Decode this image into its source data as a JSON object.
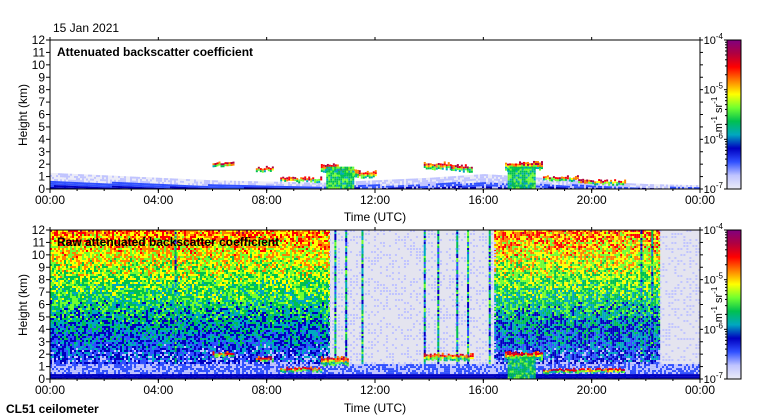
{
  "figure": {
    "date": "15 Jan 2021",
    "instrument": "CL51 ceilometer"
  },
  "chart_data": [
    {
      "type": "heatmap",
      "title": "Attenuated backscatter coefficient",
      "xlabel": "Time (UTC)",
      "ylabel": "Height (km)",
      "x_ticks": [
        "00:00",
        "04:00",
        "08:00",
        "12:00",
        "16:00",
        "20:00",
        "00:00"
      ],
      "xlim_hours": [
        0,
        24
      ],
      "y_ticks": [
        0,
        1,
        2,
        3,
        4,
        5,
        6,
        7,
        8,
        9,
        10,
        11,
        12
      ],
      "ylim": [
        0,
        12
      ],
      "colorbar": {
        "scale": "log",
        "range": [
          1e-07,
          0.0001
        ],
        "ticks": [
          {
            "base": "10",
            "exp": "-7",
            "value": 1e-07
          },
          {
            "base": "10",
            "exp": "-6",
            "value": 1e-06
          },
          {
            "base": "10",
            "exp": "-5",
            "value": 1e-05
          },
          {
            "base": "10",
            "exp": "-4",
            "value": 0.0001
          }
        ],
        "unit": {
          "m": "m",
          "m_exp": "-1",
          "sr": "sr",
          "sr_exp": "-1"
        },
        "colormap": [
          "#ececf7",
          "#c0c4ff",
          "#3050ff",
          "#0000c0",
          "#00a8c0",
          "#00c050",
          "#70ff30",
          "#ffff00",
          "#ff8000",
          "#ff0000",
          "#b00040",
          "#800080"
        ]
      },
      "features": {
        "boundary_layer": [
          {
            "h": 0.0,
            "top": 1.3
          },
          {
            "h": 2.0,
            "top": 1.1
          },
          {
            "h": 4.0,
            "top": 0.9
          },
          {
            "h": 6.0,
            "top": 0.7
          },
          {
            "h": 8.0,
            "top": 0.6
          },
          {
            "h": 10.0,
            "top": 0.5
          },
          {
            "h": 12.0,
            "top": 0.7
          },
          {
            "h": 14.0,
            "top": 0.9
          },
          {
            "h": 16.0,
            "top": 1.2
          },
          {
            "h": 17.5,
            "top": 1.0
          },
          {
            "h": 20.0,
            "top": 0.6
          },
          {
            "h": 22.0,
            "top": 0.4
          },
          {
            "h": 24.0,
            "top": 0.3
          }
        ],
        "cloud_segments": [
          {
            "start": 6.0,
            "end": 6.8,
            "height": 2.0,
            "thickness": 0.3
          },
          {
            "start": 7.6,
            "end": 8.2,
            "height": 1.6,
            "thickness": 0.3
          },
          {
            "start": 8.5,
            "end": 10.0,
            "height": 0.8,
            "thickness": 0.2
          },
          {
            "start": 10.0,
            "end": 10.6,
            "height": 1.7,
            "thickness": 0.6
          },
          {
            "start": 10.6,
            "end": 11.4,
            "height": 1.4,
            "thickness": 0.5
          },
          {
            "start": 11.4,
            "end": 12.0,
            "height": 1.2,
            "thickness": 0.4
          },
          {
            "start": 13.8,
            "end": 14.8,
            "height": 1.9,
            "thickness": 0.4
          },
          {
            "start": 14.8,
            "end": 15.6,
            "height": 1.7,
            "thickness": 0.4
          },
          {
            "start": 16.8,
            "end": 18.2,
            "height": 1.9,
            "thickness": 0.5
          },
          {
            "start": 18.2,
            "end": 19.5,
            "height": 0.9,
            "thickness": 0.2
          },
          {
            "start": 19.5,
            "end": 21.2,
            "height": 0.6,
            "thickness": 0.2
          }
        ],
        "precipitation_shafts": [
          {
            "start": 10.2,
            "end": 11.2,
            "top": 1.8
          },
          {
            "start": 16.9,
            "end": 17.9,
            "top": 1.8
          }
        ]
      }
    },
    {
      "type": "heatmap",
      "title": "Raw attenuated backscatter coefficient",
      "xlabel": "Time (UTC)",
      "ylabel": "Height (km)",
      "x_ticks": [
        "00:00",
        "04:00",
        "08:00",
        "12:00",
        "16:00",
        "20:00",
        "00:00"
      ],
      "xlim_hours": [
        0,
        24
      ],
      "y_ticks": [
        0,
        1,
        2,
        3,
        4,
        5,
        6,
        7,
        8,
        9,
        10,
        11,
        12
      ],
      "ylim": [
        0,
        12
      ],
      "colorbar": {
        "scale": "log",
        "range": [
          1e-07,
          0.0001
        ],
        "ticks": [
          {
            "base": "10",
            "exp": "-7",
            "value": 1e-07
          },
          {
            "base": "10",
            "exp": "-6",
            "value": 1e-06
          },
          {
            "base": "10",
            "exp": "-5",
            "value": 1e-05
          },
          {
            "base": "10",
            "exp": "-4",
            "value": 0.0001
          }
        ],
        "unit": {
          "m": "m",
          "m_exp": "-1",
          "sr": "sr",
          "sr_exp": "-1"
        },
        "colormap": [
          "#ececf7",
          "#c0c4ff",
          "#3050ff",
          "#0000c0",
          "#00a8c0",
          "#00c050",
          "#70ff30",
          "#ffff00",
          "#ff8000",
          "#ff0000",
          "#b00040",
          "#800080"
        ]
      },
      "features": {
        "noisy_background_periods": [
          {
            "start": 0.0,
            "end": 10.3
          },
          {
            "start": 16.4,
            "end": 22.5
          }
        ],
        "clean_periods": [
          {
            "start": 10.3,
            "end": 16.4
          },
          {
            "start": 22.5,
            "end": 24.0
          }
        ],
        "vertical_streaks": [
          4.6,
          10.5,
          10.9,
          11.5,
          13.8,
          14.3,
          15.0,
          15.4,
          16.2,
          21.8,
          22.2
        ],
        "boundary_layer_top_km": 1.2,
        "cloud_segments": [
          {
            "start": 6.0,
            "end": 6.8,
            "height": 2.0,
            "thickness": 0.3
          },
          {
            "start": 7.6,
            "end": 8.2,
            "height": 1.6,
            "thickness": 0.3
          },
          {
            "start": 8.5,
            "end": 10.0,
            "height": 0.8,
            "thickness": 0.2
          },
          {
            "start": 10.0,
            "end": 11.0,
            "height": 1.5,
            "thickness": 0.5
          },
          {
            "start": 13.8,
            "end": 15.6,
            "height": 1.8,
            "thickness": 0.4
          },
          {
            "start": 16.8,
            "end": 18.2,
            "height": 1.9,
            "thickness": 0.5
          },
          {
            "start": 18.2,
            "end": 21.2,
            "height": 0.7,
            "thickness": 0.2
          }
        ],
        "precipitation_shafts": [
          {
            "start": 16.9,
            "end": 17.9,
            "top": 1.8
          }
        ]
      }
    }
  ]
}
